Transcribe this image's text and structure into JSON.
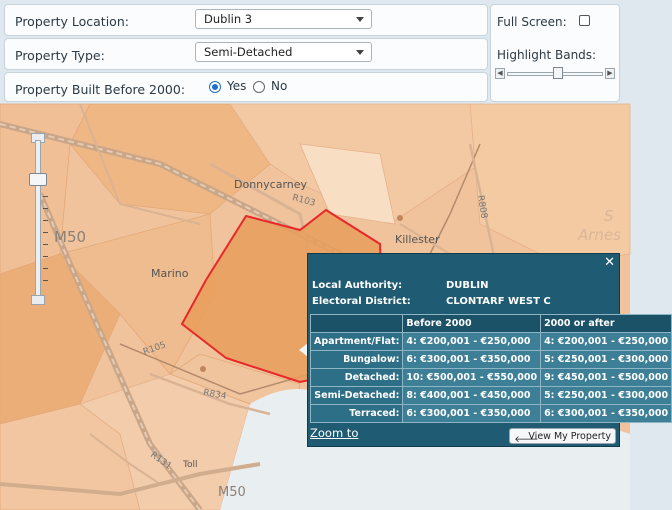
{
  "controls": {
    "location_label": "Property Location:",
    "location_value": "Dublin 3",
    "type_label": "Property Type:",
    "type_value": "Semi-Detached",
    "built_label": "Property Built Before 2000:",
    "built_yes": "Yes",
    "built_no": "No",
    "built_selected": "Yes",
    "fullscreen_label": "Full Screen:",
    "fullscreen_checked": false,
    "highlight_label": "Highlight Bands:"
  },
  "map": {
    "labels": {
      "donnycarney": "Donnycarney",
      "r103": "R103",
      "killester": "Killester",
      "m50_top": "M50",
      "marino": "Marino",
      "r105": "R105",
      "r834": "R834",
      "r131": "R131",
      "toll": "Toll",
      "m50_bottom": "M50",
      "r808": "R808",
      "arnes": "Arnes",
      "s": "S"
    },
    "colors": {
      "base": "#f0c39c",
      "district": "#e79e5a",
      "district_border": "#e8282a",
      "water": "#e9eef1"
    }
  },
  "popup": {
    "local_authority_label": "Local Authority:",
    "local_authority_value": "DUBLIN",
    "electoral_district_label": "Electoral District:",
    "electoral_district_value": "CLONTARF WEST C",
    "columns": [
      "",
      "Before 2000",
      "2000 or after"
    ],
    "rows": [
      {
        "type": "Apartment/Flat:",
        "before": "4: €200,001 - €250,000",
        "after": "4: €200,001 - €250,000"
      },
      {
        "type": "Bungalow:",
        "before": "6: €300,001 - €350,000",
        "after": "5: €250,001 - €300,000"
      },
      {
        "type": "Detached:",
        "before": "10: €500,001 - €550,000",
        "after": "9: €450,001 - €500,000"
      },
      {
        "type": "Semi-Detached:",
        "before": "8: €400,001 - €450,000",
        "after": "5: €250,001 - €300,000"
      },
      {
        "type": "Terraced:",
        "before": "6: €300,001 - €350,000",
        "after": "6: €300,001 - €350,000"
      }
    ],
    "zoom_to": "Zoom to",
    "view_property": "View My Property"
  }
}
